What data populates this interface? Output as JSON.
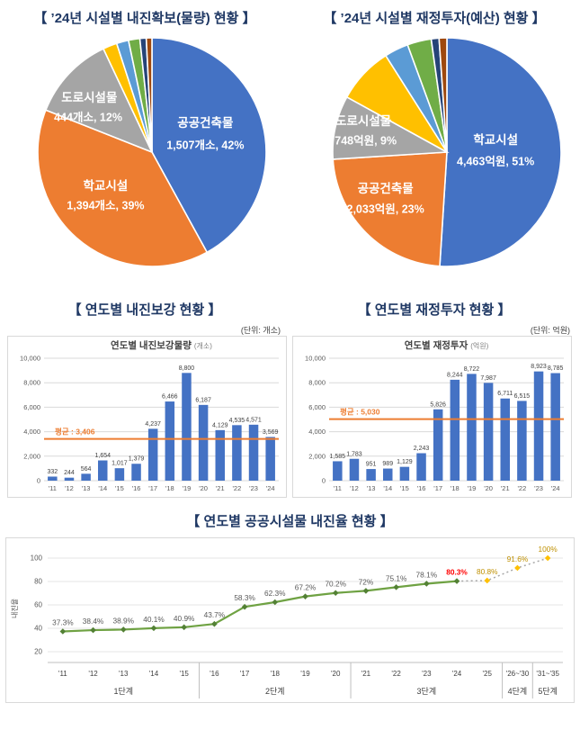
{
  "colors": {
    "title_navy": "#1F3864",
    "bar_blue": "#4472C4",
    "avg_orange": "#ED7D31",
    "grid_gray": "#D9D9D9",
    "axis_text": "#595959",
    "label_dark": "#404040",
    "line_green": "#6FA243",
    "marker_green": "#538135",
    "dotted_gray": "#A6A6A6",
    "future_gold": "#FFC000",
    "label_red": "#FF0000",
    "label_gold": "#BF9000"
  },
  "chart_data": [
    {
      "type": "pie",
      "title": "【 ’24년 시설별 내진확보(물량) 현황 】",
      "slices": [
        {
          "label": "공공건축물",
          "value_label": "1,507개소, 42%",
          "percent": 42,
          "color": "#4472C4"
        },
        {
          "label": "학교시설",
          "value_label": "1,394개소, 39%",
          "percent": 39,
          "color": "#ED7D31"
        },
        {
          "label": "도로시설물",
          "value_label": "444개소, 12%",
          "percent": 12,
          "color": "#A5A5A5"
        },
        {
          "percent": 2.0,
          "color": "#FFC000"
        },
        {
          "percent": 1.7,
          "color": "#5B9BD5"
        },
        {
          "percent": 1.6,
          "color": "#70AD47"
        },
        {
          "percent": 0.9,
          "color": "#264478"
        },
        {
          "percent": 0.8,
          "color": "#9E480E"
        }
      ]
    },
    {
      "type": "pie",
      "title": "【 ’24년 시설별 재정투자(예산) 현황 】",
      "slices": [
        {
          "label": "학교시설",
          "value_label": "4,463억원, 51%",
          "percent": 51,
          "color": "#4472C4"
        },
        {
          "label": "공공건축물",
          "value_label": "2,033억원, 23%",
          "percent": 23,
          "color": "#ED7D31"
        },
        {
          "label": "도로시설물",
          "value_label": "748억원, 9%",
          "percent": 9,
          "color": "#A5A5A5"
        },
        {
          "percent": 8.0,
          "color": "#FFC000"
        },
        {
          "percent": 3.4,
          "color": "#5B9BD5"
        },
        {
          "percent": 3.4,
          "color": "#70AD47"
        },
        {
          "percent": 1.1,
          "color": "#264478"
        },
        {
          "percent": 1.1,
          "color": "#9E480E"
        }
      ]
    },
    {
      "type": "bar",
      "section_title": "【 연도별 내진보강 현황 】",
      "unit_note": "(단위: 개소)",
      "inner_title": "연도별 내진보강물량",
      "inner_title_unit": "(개소)",
      "categories": [
        "'11",
        "'12",
        "'13",
        "'14",
        "'15",
        "'16",
        "'17",
        "'18",
        "'19",
        "'20",
        "'21",
        "'22",
        "'23",
        "'24"
      ],
      "values": [
        332,
        244,
        564,
        1654,
        1017,
        1379,
        4237,
        6466,
        8800,
        6187,
        4129,
        4535,
        4571,
        3569
      ],
      "value_labels": [
        "332",
        "244",
        "564",
        "1,654",
        "1,017",
        "1,379",
        "4,237",
        "6,466",
        "8,800",
        "6,187",
        "4,129",
        "4,535",
        "4,571",
        "3,569"
      ],
      "average": 3406,
      "average_label": "평균 : 3,406",
      "ylim": [
        0,
        10000
      ],
      "yticks": [
        0,
        2000,
        4000,
        6000,
        8000,
        10000
      ],
      "ytick_labels": [
        "0",
        "2,000",
        "4,000",
        "6,000",
        "8,000",
        "10,000"
      ]
    },
    {
      "type": "bar",
      "section_title": "【 연도별 재정투자 현황 】",
      "unit_note": "(단위: 억원)",
      "inner_title": "연도별 재정투자",
      "inner_title_unit": "(억원)",
      "categories": [
        "'11",
        "'12",
        "'13",
        "'14",
        "'15",
        "'16",
        "'17",
        "'18",
        "'19",
        "'20",
        "'21",
        "'22",
        "'23",
        "'24"
      ],
      "values": [
        1585,
        1783,
        951,
        989,
        1129,
        2243,
        5826,
        8244,
        8722,
        7987,
        6711,
        6515,
        8923,
        8785
      ],
      "value_labels": [
        "1,585",
        "1,783",
        "951",
        "989",
        "1,129",
        "2,243",
        "5,826",
        "8,244",
        "8,722",
        "7,987",
        "6,711",
        "6,515",
        "8,923",
        "8,785"
      ],
      "average": 5030,
      "average_label": "평균 : 5,030",
      "ylim": [
        0,
        10000
      ],
      "yticks": [
        0,
        2000,
        4000,
        6000,
        8000,
        10000
      ],
      "ytick_labels": [
        "0",
        "2,000",
        "4,000",
        "6,000",
        "8,000",
        "10,000"
      ]
    },
    {
      "type": "line",
      "title": "【 연도별 공공시설물 내진율 현황 】",
      "ylabel": "내진율",
      "yticks": [
        20,
        40,
        60,
        80,
        100
      ],
      "categories": [
        "'11",
        "'12",
        "'13",
        "'14",
        "'15",
        "'16",
        "'17",
        "'18",
        "'19",
        "'20",
        "'21",
        "'22",
        "'23",
        "'24",
        "'25",
        "'26~'30",
        "'31~'35"
      ],
      "values": [
        37.3,
        38.4,
        38.9,
        40.1,
        40.9,
        43.7,
        58.3,
        62.3,
        67.2,
        70.2,
        72,
        75.1,
        78.1,
        80.3,
        80.8,
        91.6,
        100
      ],
      "point_labels": [
        "37.3%",
        "38.4%",
        "38.9%",
        "40.1%",
        "40.9%",
        "43.7%",
        "58.3%",
        "62.3%",
        "67.2%",
        "70.2%",
        "72%",
        "75.1%",
        "78.1%",
        "80.3%",
        "80.8%",
        "91.6%",
        "100%"
      ],
      "solid_points": 14,
      "stages": [
        {
          "label": "1단계",
          "span": 5
        },
        {
          "label": "2단계",
          "span": 5
        },
        {
          "label": "3단계",
          "span": 5
        },
        {
          "label": "4단계",
          "span": 1
        },
        {
          "label": "5단계",
          "span": 1
        }
      ]
    }
  ]
}
